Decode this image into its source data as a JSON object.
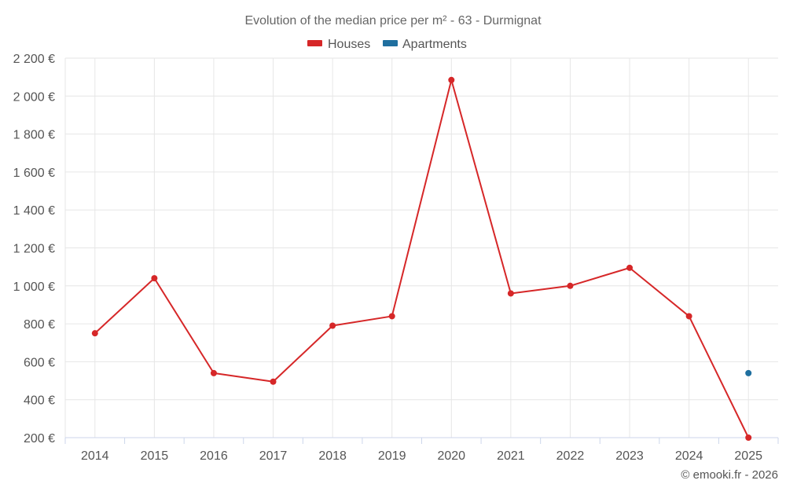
{
  "chart_data": {
    "type": "line",
    "title": "Evolution of the median price per m² - 63 - Durmignat",
    "categories": [
      "2014",
      "2015",
      "2016",
      "2017",
      "2018",
      "2019",
      "2020",
      "2021",
      "2022",
      "2023",
      "2024",
      "2025"
    ],
    "series": [
      {
        "name": "Houses",
        "color": "#d62728",
        "values": [
          750,
          1040,
          540,
          495,
          790,
          840,
          2085,
          960,
          1000,
          1095,
          840,
          200
        ]
      },
      {
        "name": "Apartments",
        "color": "#1f6f9f",
        "values": [
          null,
          null,
          null,
          null,
          null,
          null,
          null,
          null,
          null,
          null,
          null,
          540
        ]
      }
    ],
    "y_ticks": [
      "200 €",
      "400 €",
      "600 €",
      "800 €",
      "1 000 €",
      "1 200 €",
      "1 400 €",
      "1 600 €",
      "1 800 €",
      "2 000 €",
      "2 200 €"
    ],
    "ylim": [
      200,
      2200
    ],
    "y_step": 200,
    "legend_position": "top-center",
    "credit": "© emooki.fr - 2026"
  }
}
